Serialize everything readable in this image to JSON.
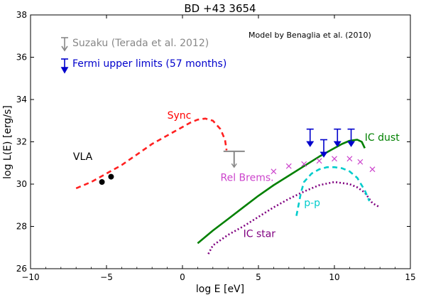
{
  "chart_data": {
    "type": "line",
    "title": "BD +43 3654",
    "xlabel": "log E [eV]",
    "ylabel": "log L(E) [erg/s]",
    "xlim": [
      -10,
      15
    ],
    "ylim": [
      26,
      38
    ],
    "x_ticks": [
      -10,
      -5,
      0,
      5,
      10,
      15
    ],
    "y_ticks": [
      26,
      28,
      30,
      32,
      34,
      36,
      38
    ],
    "x_tick_labels": [
      "−10",
      "−5",
      "0",
      "5",
      "10",
      "15"
    ],
    "y_tick_labels": [
      "26",
      "28",
      "30",
      "32",
      "34",
      "36",
      "38"
    ],
    "model_note": "Model by Benaglia et al. (2010)",
    "legend": [
      {
        "label": "Suzaku (Terada et al. 2012)",
        "color": "#888888"
      },
      {
        "label": "Fermi upper limits (57 months)",
        "color": "#0000cc"
      }
    ],
    "series": [
      {
        "name": "Sync",
        "color": "#ff2020",
        "style": "dashed",
        "x": [
          -7,
          -6,
          -5,
          -4,
          -3,
          -2,
          -1,
          0,
          0.5,
          1,
          1.5,
          2,
          2.5,
          2.8,
          2.9
        ],
        "y": [
          29.8,
          30.1,
          30.5,
          30.9,
          31.4,
          31.9,
          32.3,
          32.7,
          32.9,
          33.05,
          33.1,
          33.0,
          32.6,
          32.1,
          31.6
        ]
      },
      {
        "name": "IC dust",
        "color": "#008000",
        "style": "solid",
        "x": [
          1,
          2,
          3,
          4,
          5,
          6,
          7,
          8,
          9,
          10,
          10.5,
          11,
          11.5,
          11.8,
          12
        ],
        "y": [
          27.2,
          27.8,
          28.35,
          28.9,
          29.45,
          29.95,
          30.4,
          30.85,
          31.3,
          31.7,
          31.9,
          32.05,
          32.1,
          32.0,
          31.7
        ]
      },
      {
        "name": "IC star",
        "color": "#800080",
        "style": "dashdot",
        "x": [
          1.7,
          2,
          3,
          4,
          5,
          6,
          7,
          8,
          9,
          10,
          11,
          11.5,
          12,
          12.5,
          13
        ],
        "y": [
          26.7,
          27.1,
          27.6,
          28.0,
          28.45,
          28.9,
          29.3,
          29.65,
          29.95,
          30.1,
          30.0,
          29.85,
          29.6,
          29.1,
          28.9
        ]
      },
      {
        "name": "p-p",
        "color": "#00cccc",
        "style": "dashed",
        "x": [
          7.5,
          7.8,
          8,
          8.5,
          9,
          9.5,
          10,
          10.5,
          11,
          11.5,
          12,
          12.3
        ],
        "y": [
          28.5,
          29.6,
          30.1,
          30.5,
          30.7,
          30.8,
          30.8,
          30.75,
          30.6,
          30.3,
          29.7,
          29.2
        ]
      }
    ],
    "points": [
      {
        "group": "VLA",
        "color": "#000000",
        "marker": "circle",
        "x": [
          -5.3,
          -4.7
        ],
        "y": [
          30.1,
          30.35
        ]
      },
      {
        "group": "Rel Brems.",
        "color": "#cc44cc",
        "marker": "x",
        "x": [
          6,
          7,
          8,
          9,
          10,
          11,
          11.7,
          12.5
        ],
        "y": [
          30.6,
          30.85,
          30.95,
          31.1,
          31.2,
          31.2,
          31.05,
          30.7
        ]
      }
    ],
    "fermi_upper_limits": {
      "color": "#0000cc",
      "x": [
        8.4,
        9.3,
        10.2,
        11.1
      ],
      "y": [
        32.6,
        32.1,
        32.6,
        32.6
      ],
      "y_arrow_end": [
        31.8,
        31.3,
        31.8,
        31.8
      ]
    },
    "suzaku_upper_limit": {
      "color": "#888888",
      "x_min": 2.7,
      "x_max": 4.1,
      "y": 31.55,
      "y_arrow_end": 30.8
    },
    "annotations": [
      {
        "text": "Sync",
        "x": -1,
        "y": 33.1,
        "color": "#ff0000"
      },
      {
        "text": "VLA",
        "x": -7.2,
        "y": 31.15,
        "color": "#000000"
      },
      {
        "text": "Rel Brems.",
        "x": 2.5,
        "y": 30.15,
        "color": "#cc44cc"
      },
      {
        "text": "IC dust",
        "x": 12.0,
        "y": 32.05,
        "color": "#008000"
      },
      {
        "text": "p-p",
        "x": 8.0,
        "y": 28.95,
        "color": "#00cccc"
      },
      {
        "text": "IC star",
        "x": 4.0,
        "y": 27.5,
        "color": "#800080"
      }
    ]
  }
}
